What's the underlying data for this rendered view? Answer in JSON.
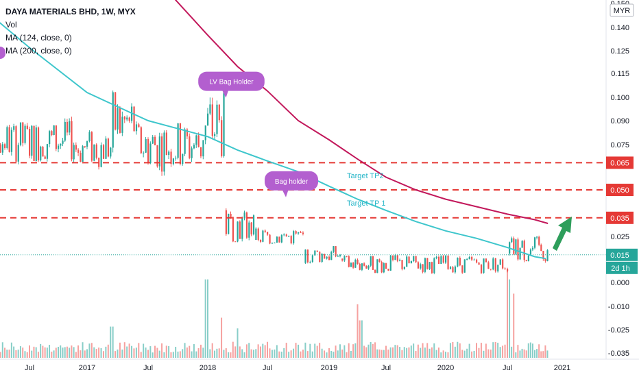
{
  "legend": {
    "symbol": "DAYA MATERIALS BHD, 1W, MYX",
    "vol": "Vol",
    "ma1": "MA (124, close, 0)",
    "ma2": "MA (200, close, 0)"
  },
  "currency": "MYR",
  "colors": {
    "up": "#26a69a",
    "down": "#ef5350",
    "ma124": "#3ec6cc",
    "ma200": "#c2185b",
    "level_line": "#e53935",
    "annotation": "#b35fcf",
    "arrow": "#2e9e5b",
    "price_tag": "#26a69a",
    "level_tag": "#e53935",
    "axis_text": "#131722"
  },
  "chart_data": {
    "type": "candlestick",
    "title": "DAYA MATERIALS BHD, 1W, MYX",
    "y_ticks": [
      "0.150",
      "0.140",
      "0.125",
      "0.115",
      "0.100",
      "0.090",
      "0.075",
      "0.050",
      "0.025",
      "0.000",
      "-0.010",
      "-0.025",
      "-0.035"
    ],
    "x_ticks": [
      "Jul",
      "2017",
      "Jul",
      "2018",
      "Jul",
      "2019",
      "Jul",
      "2020",
      "Jul",
      "2021"
    ],
    "ylim": [
      -0.035,
      0.15
    ],
    "horizontal_levels": [
      {
        "value": 0.065,
        "label": "0.065"
      },
      {
        "value": 0.05,
        "label": "0.050"
      },
      {
        "value": 0.035,
        "label": "0.035"
      }
    ],
    "current_price": {
      "value": 0.015,
      "label": "0.015",
      "countdown": "2d 1h"
    },
    "annotations": [
      {
        "text": "LV Bag Holder",
        "date": "2018-02",
        "value": 0.11
      },
      {
        "text": "Bag holder",
        "date": "2018-08",
        "value": 0.055
      }
    ],
    "targets": [
      {
        "text": "Target TP2",
        "value": 0.058
      },
      {
        "text": "Target TP 1",
        "value": 0.043
      }
    ],
    "series": [
      {
        "name": "MA (124, close, 0)",
        "points": [
          [
            2016.0,
            0.152
          ],
          [
            2016.5,
            0.127
          ],
          [
            2017.0,
            0.103
          ],
          [
            2017.25,
            0.096
          ],
          [
            2017.5,
            0.09
          ],
          [
            2017.75,
            0.085
          ],
          [
            2018.0,
            0.08
          ],
          [
            2018.25,
            0.072
          ],
          [
            2018.5,
            0.066
          ],
          [
            2018.75,
            0.06
          ],
          [
            2019.0,
            0.052
          ],
          [
            2019.25,
            0.045
          ],
          [
            2019.5,
            0.039
          ],
          [
            2019.75,
            0.033
          ],
          [
            2020.0,
            0.028
          ],
          [
            2020.25,
            0.024
          ],
          [
            2020.5,
            0.019
          ],
          [
            2020.75,
            0.014
          ],
          [
            2020.85,
            0.013
          ]
        ]
      },
      {
        "name": "MA (200, close, 0)",
        "points": [
          [
            2017.65,
            0.156
          ],
          [
            2018.0,
            0.135
          ],
          [
            2018.25,
            0.118
          ],
          [
            2018.5,
            0.104
          ],
          [
            2018.75,
            0.09
          ],
          [
            2019.0,
            0.078
          ],
          [
            2019.25,
            0.067
          ],
          [
            2019.5,
            0.057
          ],
          [
            2019.75,
            0.05
          ],
          [
            2020.0,
            0.045
          ],
          [
            2020.25,
            0.041
          ],
          [
            2020.5,
            0.037
          ],
          [
            2020.75,
            0.034
          ],
          [
            2020.87,
            0.032
          ]
        ]
      }
    ],
    "price_segments": [
      {
        "from": 2016.0,
        "to": 2016.9,
        "low": 0.065,
        "high": 0.09
      },
      {
        "from": 2016.9,
        "to": 2017.2,
        "low": 0.062,
        "high": 0.085
      },
      {
        "from": 2017.2,
        "to": 2017.4,
        "low": 0.07,
        "high": 0.105
      },
      {
        "from": 2017.4,
        "to": 2017.95,
        "low": 0.06,
        "high": 0.09
      },
      {
        "from": 2017.95,
        "to": 2018.15,
        "low": 0.065,
        "high": 0.105
      },
      {
        "from": 2018.15,
        "to": 2018.4,
        "low": 0.022,
        "high": 0.04
      },
      {
        "from": 2018.4,
        "to": 2018.8,
        "low": 0.02,
        "high": 0.03
      },
      {
        "from": 2018.8,
        "to": 2019.1,
        "low": 0.01,
        "high": 0.02
      },
      {
        "from": 2019.1,
        "to": 2020.5,
        "low": 0.005,
        "high": 0.015
      },
      {
        "from": 2020.5,
        "to": 2020.87,
        "low": 0.01,
        "high": 0.025
      }
    ],
    "volume_spikes": [
      {
        "x": 2017.2,
        "level": 0.35
      },
      {
        "x": 2017.99,
        "level": 0.88
      },
      {
        "x": 2018.12,
        "level": 0.45
      },
      {
        "x": 2018.25,
        "level": 0.33
      },
      {
        "x": 2019.25,
        "level": 0.6
      },
      {
        "x": 2019.28,
        "level": 0.42
      },
      {
        "x": 2020.5,
        "level": 1.0
      },
      {
        "x": 2020.52,
        "level": 0.88
      },
      {
        "x": 2020.55,
        "level": 0.72
      }
    ],
    "grid": false
  }
}
